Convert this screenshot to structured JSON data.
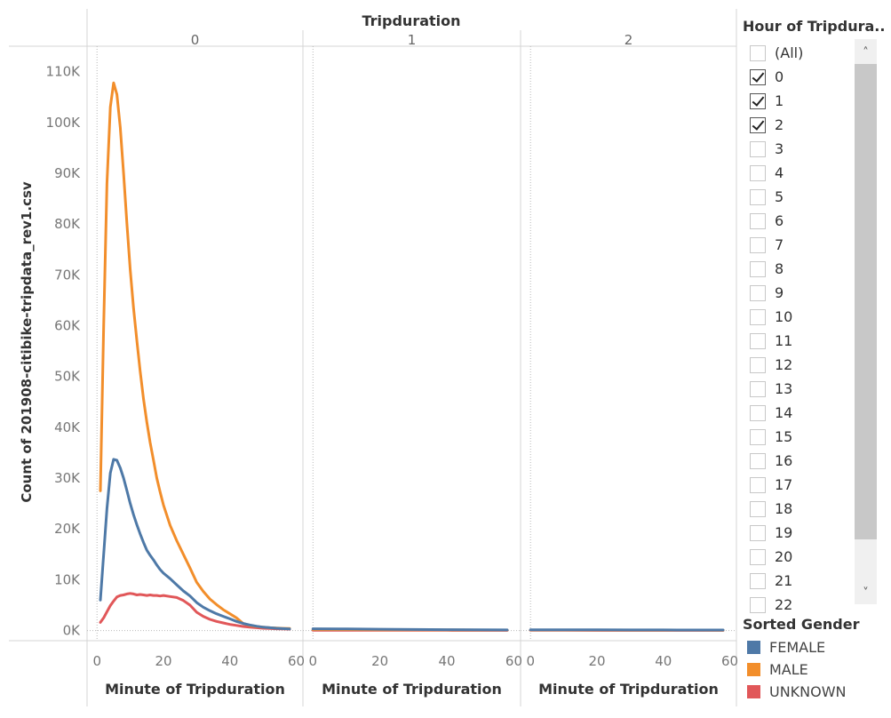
{
  "chart_data": {
    "type": "line",
    "column_header": "Tripduration",
    "panels": [
      "0",
      "1",
      "2"
    ],
    "xlabel": "Minute of Tripduration",
    "ylabel": "Count of 201908-citibike-tripdata_rev1.csv",
    "x_ticks": [
      "0",
      "20",
      "40",
      "60"
    ],
    "y_ticks": [
      "0K",
      "10K",
      "20K",
      "30K",
      "40K",
      "50K",
      "60K",
      "70K",
      "80K",
      "90K",
      "100K",
      "110K"
    ],
    "xlim": [
      -3,
      62
    ],
    "ylim": [
      -2000,
      115000
    ],
    "series": [
      {
        "name": "FEMALE",
        "color": "#4e79a7",
        "panels": [
          [
            [
              1,
              6000
            ],
            [
              2,
              15000
            ],
            [
              3,
              24000
            ],
            [
              4,
              31000
            ],
            [
              5,
              33700
            ],
            [
              6,
              33500
            ],
            [
              7,
              32000
            ],
            [
              8,
              30000
            ],
            [
              9,
              27500
            ],
            [
              10,
              25000
            ],
            [
              11,
              22800
            ],
            [
              12,
              20800
            ],
            [
              13,
              19000
            ],
            [
              14,
              17300
            ],
            [
              15,
              15800
            ],
            [
              16,
              14800
            ],
            [
              17,
              13900
            ],
            [
              18,
              12900
            ],
            [
              19,
              12000
            ],
            [
              20,
              11300
            ],
            [
              22,
              10200
            ],
            [
              24,
              9000
            ],
            [
              26,
              7800
            ],
            [
              28,
              6800
            ],
            [
              30,
              5500
            ],
            [
              32,
              4600
            ],
            [
              34,
              3900
            ],
            [
              36,
              3300
            ],
            [
              38,
              2800
            ],
            [
              40,
              2300
            ],
            [
              42,
              1800
            ],
            [
              44,
              1400
            ],
            [
              46,
              1100
            ],
            [
              48,
              850
            ],
            [
              50,
              650
            ],
            [
              52,
              550
            ],
            [
              54,
              450
            ],
            [
              56,
              380
            ],
            [
              58,
              330
            ]
          ],
          [
            [
              0,
              350
            ],
            [
              10,
              300
            ],
            [
              20,
              250
            ],
            [
              30,
              200
            ],
            [
              40,
              170
            ],
            [
              50,
              140
            ],
            [
              58,
              120
            ]
          ],
          [
            [
              0,
              150
            ],
            [
              10,
              140
            ],
            [
              20,
              130
            ],
            [
              30,
              120
            ],
            [
              40,
              110
            ],
            [
              50,
              100
            ],
            [
              58,
              90
            ]
          ]
        ]
      },
      {
        "name": "MALE",
        "color": "#f28e2b",
        "panels": [
          [
            [
              1,
              27500
            ],
            [
              2,
              60000
            ],
            [
              3,
              88000
            ],
            [
              4,
              103000
            ],
            [
              5,
              107800
            ],
            [
              6,
              105500
            ],
            [
              7,
              99000
            ],
            [
              8,
              90000
            ],
            [
              9,
              80000
            ],
            [
              10,
              71000
            ],
            [
              11,
              63500
            ],
            [
              12,
              57000
            ],
            [
              13,
              51000
            ],
            [
              14,
              45500
            ],
            [
              15,
              41000
            ],
            [
              16,
              37000
            ],
            [
              17,
              33500
            ],
            [
              18,
              30000
            ],
            [
              19,
              27300
            ],
            [
              20,
              24700
            ],
            [
              22,
              20700
            ],
            [
              24,
              17700
            ],
            [
              26,
              15000
            ],
            [
              28,
              12300
            ],
            [
              30,
              9500
            ],
            [
              32,
              7700
            ],
            [
              34,
              6200
            ],
            [
              36,
              5100
            ],
            [
              38,
              4100
            ],
            [
              40,
              3300
            ],
            [
              42,
              2500
            ],
            [
              44,
              1400
            ],
            [
              46,
              1000
            ],
            [
              48,
              800
            ],
            [
              50,
              650
            ],
            [
              52,
              550
            ],
            [
              54,
              480
            ],
            [
              56,
              430
            ],
            [
              58,
              400
            ]
          ],
          [
            [
              0,
              200
            ],
            [
              10,
              180
            ],
            [
              20,
              150
            ],
            [
              30,
              130
            ],
            [
              40,
              110
            ],
            [
              50,
              100
            ],
            [
              58,
              90
            ]
          ],
          [
            [
              0,
              100
            ],
            [
              10,
              95
            ],
            [
              20,
              90
            ],
            [
              30,
              85
            ],
            [
              40,
              80
            ],
            [
              50,
              75
            ],
            [
              58,
              70
            ]
          ]
        ]
      },
      {
        "name": "UNKNOWN",
        "color": "#e15759",
        "panels": [
          [
            [
              1,
              1600
            ],
            [
              2,
              2500
            ],
            [
              3,
              3700
            ],
            [
              4,
              4900
            ],
            [
              5,
              5800
            ],
            [
              6,
              6600
            ],
            [
              7,
              6900
            ],
            [
              8,
              7000
            ],
            [
              9,
              7200
            ],
            [
              10,
              7300
            ],
            [
              11,
              7200
            ],
            [
              12,
              7000
            ],
            [
              13,
              7100
            ],
            [
              14,
              7000
            ],
            [
              15,
              6900
            ],
            [
              16,
              7000
            ],
            [
              17,
              6900
            ],
            [
              18,
              6900
            ],
            [
              19,
              6800
            ],
            [
              20,
              6900
            ],
            [
              22,
              6700
            ],
            [
              24,
              6500
            ],
            [
              26,
              5900
            ],
            [
              28,
              5000
            ],
            [
              30,
              3600
            ],
            [
              32,
              2800
            ],
            [
              34,
              2200
            ],
            [
              36,
              1800
            ],
            [
              38,
              1500
            ],
            [
              40,
              1200
            ],
            [
              42,
              1000
            ],
            [
              44,
              800
            ],
            [
              46,
              650
            ],
            [
              48,
              550
            ],
            [
              50,
              450
            ],
            [
              52,
              400
            ],
            [
              54,
              350
            ],
            [
              56,
              300
            ],
            [
              58,
              280
            ]
          ],
          [
            [
              0,
              60
            ],
            [
              10,
              55
            ],
            [
              20,
              50
            ],
            [
              30,
              45
            ],
            [
              40,
              40
            ],
            [
              50,
              35
            ],
            [
              58,
              30
            ]
          ],
          [
            [
              0,
              40
            ],
            [
              10,
              38
            ],
            [
              20,
              36
            ],
            [
              30,
              34
            ],
            [
              40,
              32
            ],
            [
              50,
              30
            ],
            [
              58,
              28
            ]
          ]
        ]
      }
    ],
    "legend_placement": "bottom-right"
  },
  "filter": {
    "title": "Hour of Tripdura..",
    "items": [
      {
        "label": "(All)",
        "checked": false
      },
      {
        "label": "0",
        "checked": true
      },
      {
        "label": "1",
        "checked": true
      },
      {
        "label": "2",
        "checked": true
      },
      {
        "label": "3",
        "checked": false
      },
      {
        "label": "4",
        "checked": false
      },
      {
        "label": "5",
        "checked": false
      },
      {
        "label": "6",
        "checked": false
      },
      {
        "label": "7",
        "checked": false
      },
      {
        "label": "8",
        "checked": false
      },
      {
        "label": "9",
        "checked": false
      },
      {
        "label": "10",
        "checked": false
      },
      {
        "label": "11",
        "checked": false
      },
      {
        "label": "12",
        "checked": false
      },
      {
        "label": "13",
        "checked": false
      },
      {
        "label": "14",
        "checked": false
      },
      {
        "label": "15",
        "checked": false
      },
      {
        "label": "16",
        "checked": false
      },
      {
        "label": "17",
        "checked": false
      },
      {
        "label": "18",
        "checked": false
      },
      {
        "label": "19",
        "checked": false
      },
      {
        "label": "20",
        "checked": false
      },
      {
        "label": "21",
        "checked": false
      },
      {
        "label": "22",
        "checked": false
      }
    ],
    "scroll_up_icon": "chevron-up-icon",
    "scroll_down_icon": "chevron-down-icon"
  },
  "legend": {
    "title": "Sorted Gender",
    "items": [
      {
        "label": "FEMALE",
        "color": "#4e79a7"
      },
      {
        "label": "MALE",
        "color": "#f28e2b"
      },
      {
        "label": "UNKNOWN",
        "color": "#e15759"
      }
    ]
  }
}
